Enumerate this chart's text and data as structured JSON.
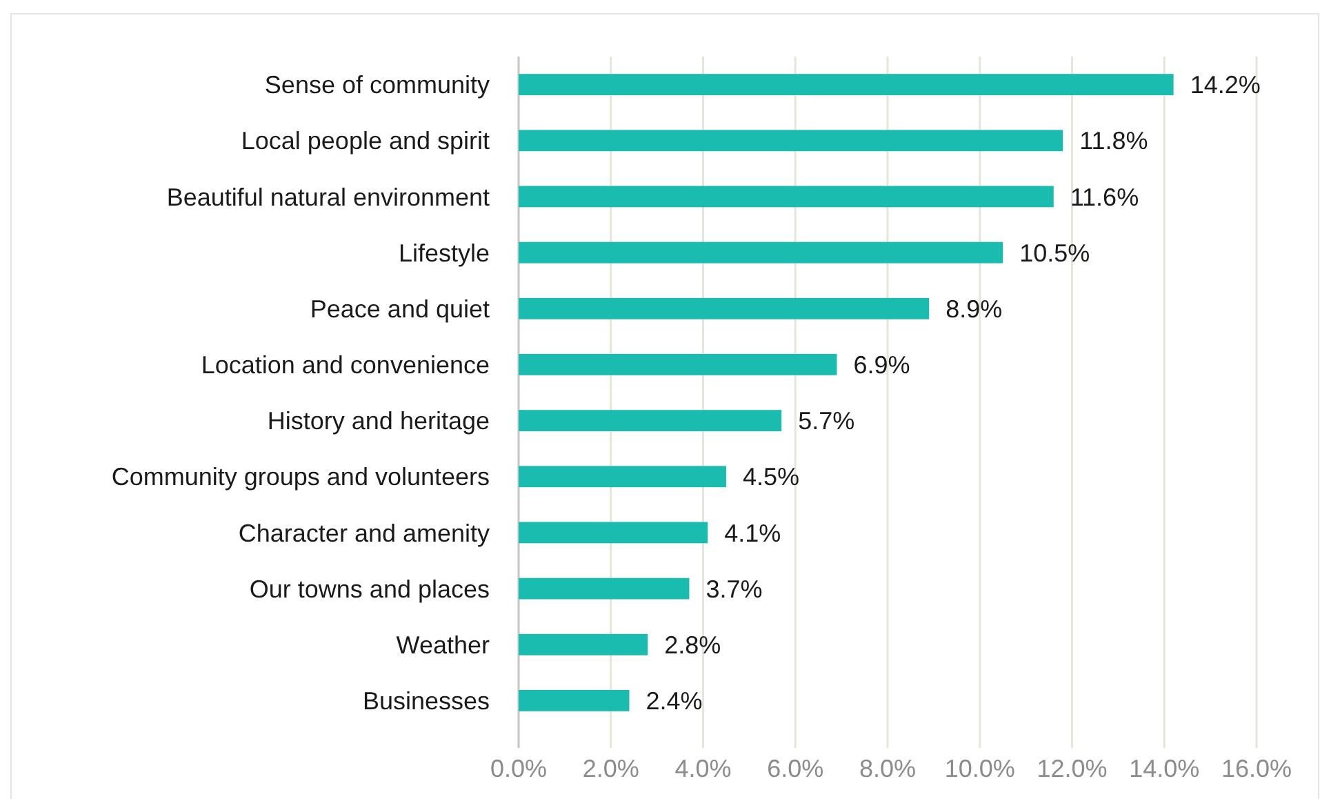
{
  "chart_data": {
    "type": "bar",
    "orientation": "horizontal",
    "categories": [
      "Sense of community",
      "Local people and spirit",
      "Beautiful natural environment",
      "Lifestyle",
      "Peace and quiet",
      "Location and convenience",
      "History and heritage",
      "Community groups and volunteers",
      "Character and amenity",
      "Our towns and places",
      "Weather",
      "Businesses"
    ],
    "values": [
      14.2,
      11.8,
      11.6,
      10.5,
      8.9,
      6.9,
      5.7,
      4.5,
      4.1,
      3.7,
      2.8,
      2.4
    ],
    "value_labels": [
      "14.2%",
      "11.8%",
      "11.6%",
      "10.5%",
      "8.9%",
      "6.9%",
      "5.7%",
      "4.5%",
      "4.1%",
      "3.7%",
      "2.8%",
      "2.4%"
    ],
    "color": "#1bbcb0",
    "xlim": [
      0,
      16
    ],
    "xticks": [
      {
        "value": 0,
        "label": "0.0%"
      },
      {
        "value": 2,
        "label": "2.0%"
      },
      {
        "value": 4,
        "label": "4.0%"
      },
      {
        "value": 6,
        "label": "6.0%"
      },
      {
        "value": 8,
        "label": "8.0%"
      },
      {
        "value": 10,
        "label": "10.0%"
      },
      {
        "value": 12,
        "label": "12.0%"
      },
      {
        "value": 14,
        "label": "14.0%"
      },
      {
        "value": 16,
        "label": "16.0%"
      }
    ],
    "grid": "x"
  }
}
